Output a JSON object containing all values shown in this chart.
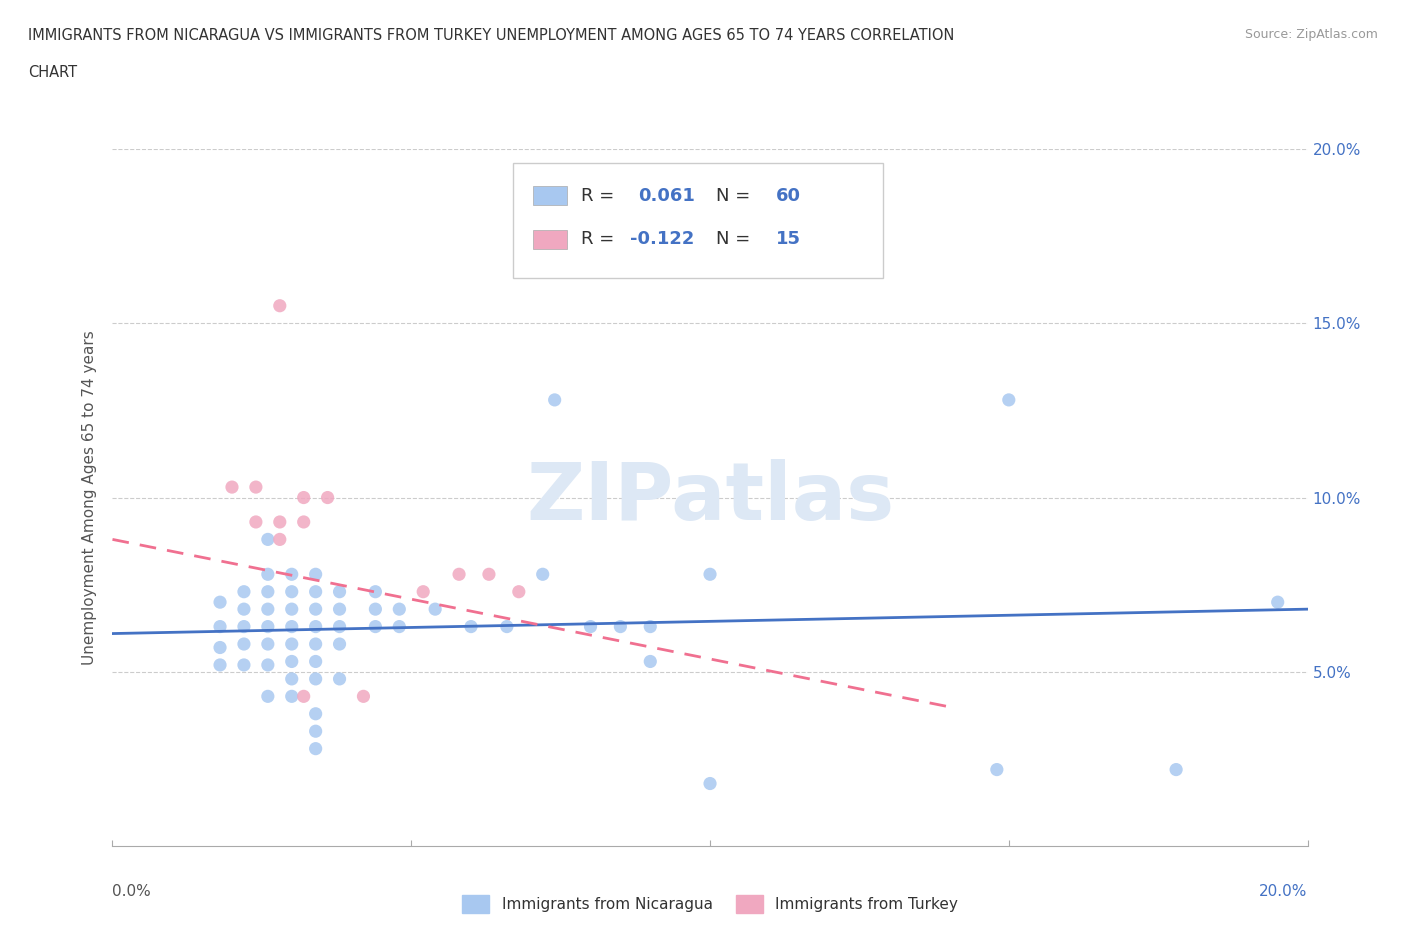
{
  "title_line1": "IMMIGRANTS FROM NICARAGUA VS IMMIGRANTS FROM TURKEY UNEMPLOYMENT AMONG AGES 65 TO 74 YEARS CORRELATION",
  "title_line2": "CHART",
  "source_text": "Source: ZipAtlas.com",
  "ylabel": "Unemployment Among Ages 65 to 74 years",
  "xlim": [
    0.0,
    0.2
  ],
  "ylim": [
    0.0,
    0.2
  ],
  "xticks": [
    0.0,
    0.05,
    0.1,
    0.15,
    0.2
  ],
  "yticks": [
    0.05,
    0.1,
    0.15,
    0.2
  ],
  "right_yticklabels": [
    "5.0%",
    "10.0%",
    "15.0%",
    "20.0%"
  ],
  "xticklabels_ends": [
    "0.0%",
    "20.0%"
  ],
  "watermark_text": "ZIPatlas",
  "R_nicaragua": 0.061,
  "N_nicaragua": 60,
  "R_turkey": -0.122,
  "N_turkey": 15,
  "nicaragua_color": "#a8c8f0",
  "turkey_color": "#f0a8c0",
  "nicaragua_line_color": "#4472c4",
  "turkey_line_color": "#f07090",
  "nicaragua_scatter": [
    [
      0.018,
      0.07
    ],
    [
      0.018,
      0.063
    ],
    [
      0.018,
      0.057
    ],
    [
      0.018,
      0.052
    ],
    [
      0.022,
      0.073
    ],
    [
      0.022,
      0.068
    ],
    [
      0.022,
      0.063
    ],
    [
      0.022,
      0.058
    ],
    [
      0.022,
      0.052
    ],
    [
      0.026,
      0.088
    ],
    [
      0.026,
      0.078
    ],
    [
      0.026,
      0.073
    ],
    [
      0.026,
      0.068
    ],
    [
      0.026,
      0.063
    ],
    [
      0.026,
      0.058
    ],
    [
      0.026,
      0.052
    ],
    [
      0.026,
      0.043
    ],
    [
      0.03,
      0.078
    ],
    [
      0.03,
      0.073
    ],
    [
      0.03,
      0.068
    ],
    [
      0.03,
      0.063
    ],
    [
      0.03,
      0.058
    ],
    [
      0.03,
      0.053
    ],
    [
      0.03,
      0.048
    ],
    [
      0.03,
      0.043
    ],
    [
      0.034,
      0.078
    ],
    [
      0.034,
      0.073
    ],
    [
      0.034,
      0.068
    ],
    [
      0.034,
      0.063
    ],
    [
      0.034,
      0.058
    ],
    [
      0.034,
      0.053
    ],
    [
      0.034,
      0.048
    ],
    [
      0.034,
      0.038
    ],
    [
      0.034,
      0.033
    ],
    [
      0.034,
      0.028
    ],
    [
      0.038,
      0.073
    ],
    [
      0.038,
      0.068
    ],
    [
      0.038,
      0.063
    ],
    [
      0.038,
      0.058
    ],
    [
      0.038,
      0.048
    ],
    [
      0.044,
      0.073
    ],
    [
      0.044,
      0.068
    ],
    [
      0.044,
      0.063
    ],
    [
      0.048,
      0.068
    ],
    [
      0.048,
      0.063
    ],
    [
      0.054,
      0.068
    ],
    [
      0.06,
      0.063
    ],
    [
      0.066,
      0.063
    ],
    [
      0.072,
      0.078
    ],
    [
      0.074,
      0.128
    ],
    [
      0.08,
      0.063
    ],
    [
      0.085,
      0.063
    ],
    [
      0.09,
      0.053
    ],
    [
      0.09,
      0.063
    ],
    [
      0.1,
      0.078
    ],
    [
      0.15,
      0.128
    ],
    [
      0.195,
      0.07
    ],
    [
      0.148,
      0.022
    ],
    [
      0.178,
      0.022
    ],
    [
      0.1,
      0.018
    ]
  ],
  "turkey_scatter": [
    [
      0.02,
      0.103
    ],
    [
      0.024,
      0.103
    ],
    [
      0.028,
      0.155
    ],
    [
      0.032,
      0.1
    ],
    [
      0.024,
      0.093
    ],
    [
      0.028,
      0.093
    ],
    [
      0.032,
      0.093
    ],
    [
      0.028,
      0.088
    ],
    [
      0.036,
      0.1
    ],
    [
      0.032,
      0.043
    ],
    [
      0.042,
      0.043
    ],
    [
      0.058,
      0.078
    ],
    [
      0.063,
      0.078
    ],
    [
      0.052,
      0.073
    ],
    [
      0.068,
      0.073
    ]
  ],
  "nicaragua_trendline": [
    [
      0.0,
      0.061
    ],
    [
      0.2,
      0.068
    ]
  ],
  "turkey_trendline": [
    [
      0.0,
      0.088
    ],
    [
      0.14,
      0.04
    ]
  ]
}
